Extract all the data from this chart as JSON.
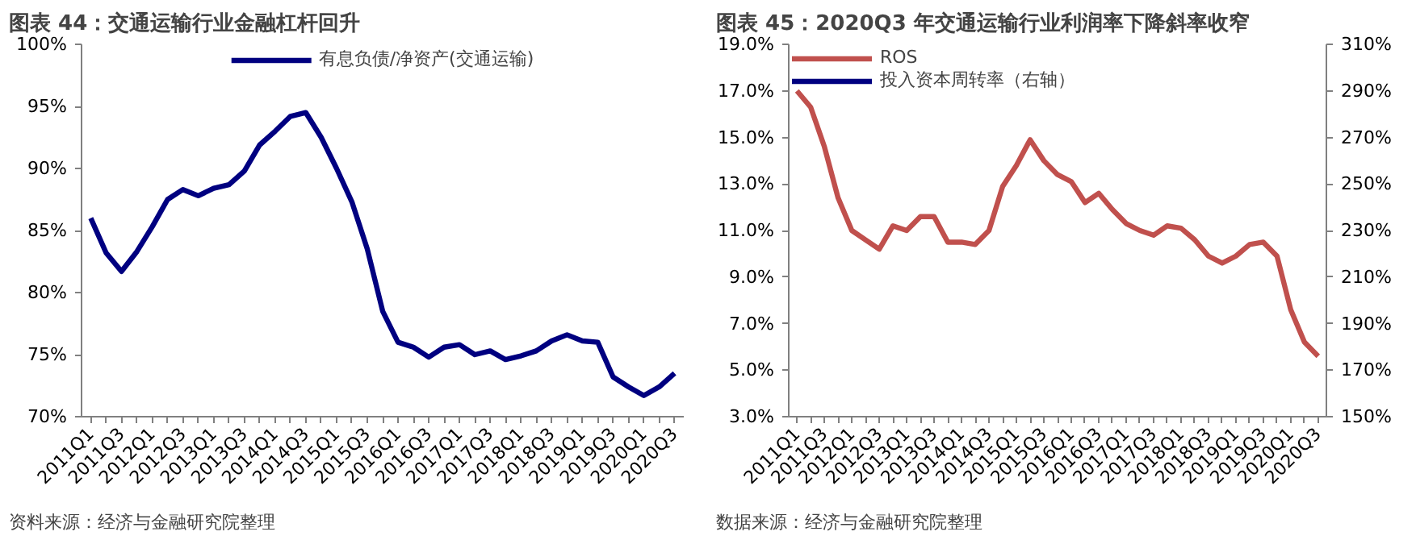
{
  "chart_data": [
    {
      "type": "line",
      "title": "图表 44：交通运输行业金融杠杆回升",
      "categories": [
        "2011Q1",
        null,
        "2011Q3",
        null,
        "2012Q1",
        null,
        "2012Q3",
        null,
        "2013Q1",
        null,
        "2013Q3",
        null,
        "2014Q1",
        null,
        "2014Q3",
        null,
        "2015Q1",
        null,
        "2015Q3",
        null,
        "2016Q1",
        null,
        "2016Q3",
        null,
        "2017Q1",
        null,
        "2017Q3",
        null,
        "2018Q1",
        null,
        "2018Q3",
        null,
        "2019Q1",
        null,
        "2019Q3",
        null,
        "2020Q1",
        null,
        "2020Q3"
      ],
      "series": [
        {
          "name": "有息负债/净资产(交通运输)",
          "color": "#000080",
          "values": [
            86.0,
            83.2,
            81.7,
            83.3,
            85.3,
            87.5,
            88.3,
            87.8,
            88.4,
            88.7,
            89.8,
            91.9,
            93.0,
            94.2,
            94.5,
            92.5,
            90.0,
            87.3,
            83.5,
            78.5,
            76.0,
            75.6,
            74.8,
            75.6,
            75.8,
            75.0,
            75.3,
            74.6,
            74.9,
            75.3,
            76.1,
            76.6,
            76.1,
            76.0,
            73.2,
            72.4,
            71.7,
            72.4,
            73.5
          ]
        }
      ],
      "ylim": [
        70,
        100
      ],
      "yticks": [
        {
          "value": 70,
          "label": "70%"
        },
        {
          "value": 75,
          "label": "75%"
        },
        {
          "value": 80,
          "label": "80%"
        },
        {
          "value": 85,
          "label": "85%"
        },
        {
          "value": 90,
          "label": "90%"
        },
        {
          "value": 95,
          "label": "95%"
        },
        {
          "value": 100,
          "label": "100%"
        }
      ],
      "legend": "top",
      "grid": false,
      "marker": "none",
      "line_style": "solid",
      "annotations": [
        "资料来源：经济与金融研究院整理"
      ]
    },
    {
      "type": "line",
      "title": "图表 45：2020Q3 年交通运输行业利润率下降斜率收窄",
      "categories": [
        "2011Q1",
        null,
        "2011Q3",
        null,
        "2012Q1",
        null,
        "2012Q3",
        null,
        "2013Q1",
        null,
        "2013Q3",
        null,
        "2014Q1",
        null,
        "2014Q3",
        null,
        "2015Q1",
        null,
        "2015Q3",
        null,
        "2016Q1",
        null,
        "2016Q3",
        null,
        "2017Q1",
        null,
        "2017Q3",
        null,
        "2018Q1",
        null,
        "2018Q3",
        null,
        "2019Q1",
        null,
        "2019Q3",
        null,
        "2020Q1",
        null,
        "2020Q3"
      ],
      "series": [
        {
          "name": "ROS",
          "color": "#c0504d",
          "values": [
            17.0,
            16.3,
            14.6,
            12.4,
            11.0,
            10.6,
            10.2,
            11.2,
            11.0,
            11.6,
            11.6,
            10.5,
            10.5,
            10.4,
            11.0,
            12.9,
            13.8,
            14.9,
            14.0,
            13.4,
            13.1,
            12.2,
            12.6,
            11.9,
            11.3,
            11.0,
            10.8,
            11.2,
            11.1,
            10.6,
            9.9,
            9.6,
            9.9,
            10.4,
            10.5,
            9.9,
            7.6,
            6.2,
            5.6
          ]
        },
        {
          "name": "投入资本周转率（右轴）",
          "color": "#000080",
          "values": [
            null,
            null,
            null,
            null,
            null,
            null,
            null,
            null,
            null,
            null,
            null,
            null,
            null,
            null,
            null,
            null,
            null,
            null,
            null,
            null,
            null,
            null,
            null,
            null,
            null,
            null,
            null,
            null,
            null,
            null,
            null,
            null,
            null,
            null,
            null,
            null,
            null,
            null,
            null
          ]
        }
      ],
      "ylim": [
        3.0,
        19.0
      ],
      "yticks": [
        {
          "value": 3.0,
          "label": "3.0%"
        },
        {
          "value": 5.0,
          "label": "5.0%"
        },
        {
          "value": 7.0,
          "label": "7.0%"
        },
        {
          "value": 9.0,
          "label": "9.0%"
        },
        {
          "value": 11.0,
          "label": "11.0%"
        },
        {
          "value": 13.0,
          "label": "13.0%"
        },
        {
          "value": 15.0,
          "label": "15.0%"
        },
        {
          "value": 17.0,
          "label": "17.0%"
        },
        {
          "value": 19.0,
          "label": "19.0%"
        }
      ],
      "y2lim": [
        150,
        310
      ],
      "y2ticks": [
        {
          "value": 150,
          "label": "150%"
        },
        {
          "value": 170,
          "label": "170%"
        },
        {
          "value": 190,
          "label": "190%"
        },
        {
          "value": 210,
          "label": "210%"
        },
        {
          "value": 230,
          "label": "230%"
        },
        {
          "value": 250,
          "label": "250%"
        },
        {
          "value": 270,
          "label": "270%"
        },
        {
          "value": 290,
          "label": "290%"
        },
        {
          "value": 310,
          "label": "310%"
        }
      ],
      "legend": "top left",
      "grid": false,
      "marker": "none",
      "line_style": "solid",
      "annotations": [
        "数据来源：经济与金融研究院整理"
      ]
    }
  ]
}
